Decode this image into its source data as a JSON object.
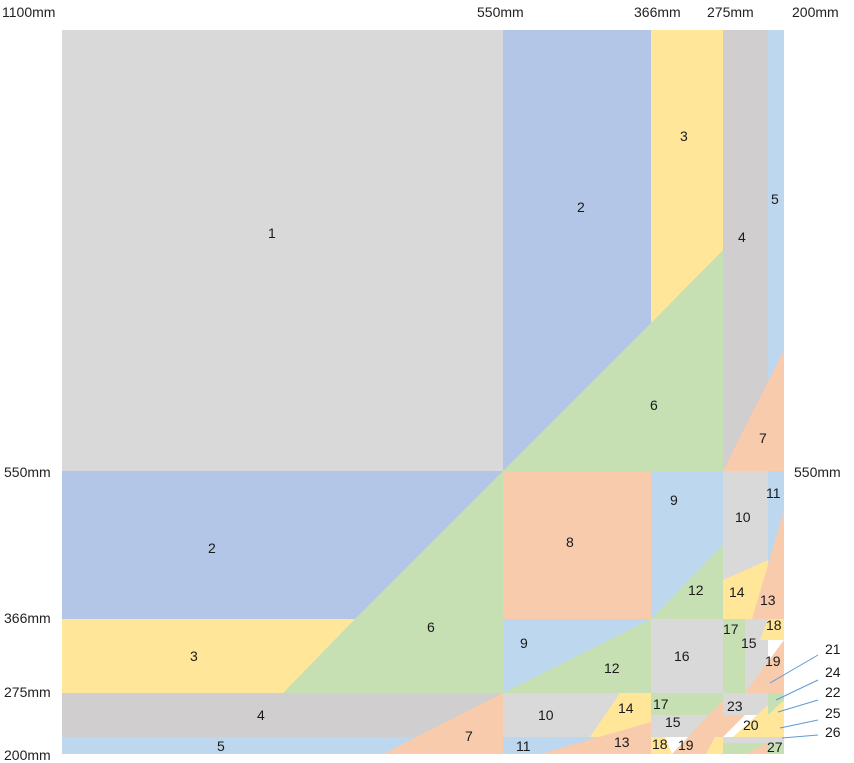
{
  "top_labels": [
    "1100mm",
    "550mm",
    "366mm",
    "275mm",
    "200mm"
  ],
  "left_labels": [
    "550mm",
    "366mm",
    "275mm",
    "200mm"
  ],
  "right_label": "550mm",
  "region_numbers": [
    "1",
    "2",
    "3",
    "4",
    "5",
    "6",
    "7",
    "8",
    "9",
    "10",
    "11",
    "12",
    "13",
    "14",
    "15",
    "16",
    "17",
    "18",
    "19",
    "20",
    "21",
    "22",
    "23",
    "24",
    "25",
    "26",
    "27"
  ],
  "colors": {
    "gray": "#d9d9d9",
    "dark_gray": "#d0cece",
    "blue": "#b4c6e7",
    "light_blue": "#bdd7ee",
    "yellow": "#ffe699",
    "green": "#c6e0b4",
    "peach": "#f8cbad",
    "callout": "#5b9bd5"
  }
}
